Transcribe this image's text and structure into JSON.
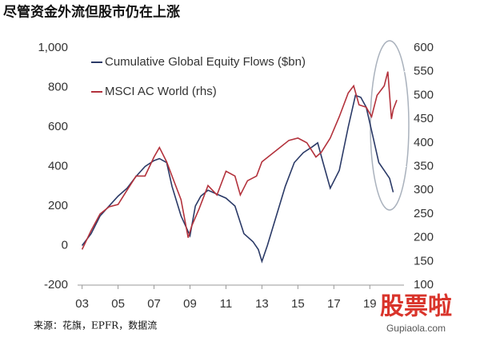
{
  "title": "尽管资金外流但股市仍在上涨",
  "source": "来源：花旗，EPFR，数据流",
  "watermark": {
    "brand": "股票啦",
    "site": "Gupiaola.com"
  },
  "chart_data": {
    "type": "line",
    "xlim": [
      2.75,
      20.9
    ],
    "xticks": [
      {
        "value": 3,
        "label": "03"
      },
      {
        "value": 5,
        "label": "05"
      },
      {
        "value": 7,
        "label": "07"
      },
      {
        "value": 9,
        "label": "09"
      },
      11,
      13,
      15,
      17,
      19
    ],
    "ylim": [
      -200,
      1000
    ],
    "yticks": [
      -200,
      0,
      200,
      400,
      600,
      800,
      {
        "value": 1000,
        "label": "1,000"
      }
    ],
    "y2lim": [
      100,
      600
    ],
    "y2ticks": [
      100,
      150,
      200,
      250,
      300,
      350,
      400,
      450,
      500,
      550,
      600
    ],
    "grid": false,
    "legend": "top-left",
    "series": [
      {
        "name": "Cumulative Global Equity Flows ($bn)",
        "color": "#2b3a67",
        "axis": "y",
        "x": [
          3,
          3.5,
          4,
          4.5,
          5,
          5.5,
          6,
          6.5,
          7,
          7.3,
          7.7,
          8,
          8.5,
          9,
          9.3,
          9.6,
          10,
          10.5,
          11,
          11.5,
          12,
          12.5,
          12.8,
          13,
          13.3,
          13.8,
          14.3,
          14.8,
          15.3,
          15.8,
          16.1,
          16.4,
          16.8,
          17.3,
          17.8,
          18.2,
          18.5,
          18.8,
          19.2,
          19.5,
          19.8,
          20.1,
          20.3
        ],
        "values": [
          0,
          60,
          150,
          200,
          250,
          290,
          350,
          400,
          430,
          440,
          420,
          300,
          150,
          50,
          200,
          250,
          280,
          260,
          240,
          200,
          60,
          20,
          -20,
          -80,
          0,
          150,
          300,
          420,
          470,
          500,
          520,
          420,
          290,
          380,
          600,
          760,
          750,
          700,
          540,
          420,
          380,
          340,
          270
        ]
      },
      {
        "name": "MSCI AC World (rhs)",
        "color": "#b3323c",
        "axis": "y2",
        "x": [
          3,
          3.5,
          4,
          4.5,
          5,
          5.5,
          6,
          6.5,
          7,
          7.3,
          7.7,
          8,
          8.5,
          8.9,
          9.1,
          9.5,
          10,
          10.5,
          11,
          11.5,
          11.8,
          12.2,
          12.7,
          13,
          13.5,
          14,
          14.5,
          15,
          15.5,
          16,
          16.3,
          16.8,
          17.3,
          17.8,
          18.1,
          18.4,
          18.8,
          19.1,
          19.4,
          19.8,
          20,
          20.2,
          20.3,
          20.5
        ],
        "values": [
          175,
          215,
          250,
          265,
          270,
          300,
          330,
          330,
          370,
          390,
          360,
          330,
          280,
          200,
          225,
          260,
          310,
          290,
          340,
          330,
          290,
          320,
          330,
          360,
          375,
          390,
          405,
          410,
          400,
          370,
          380,
          410,
          455,
          505,
          520,
          480,
          475,
          455,
          500,
          520,
          550,
          450,
          470,
          490
        ]
      }
    ]
  }
}
